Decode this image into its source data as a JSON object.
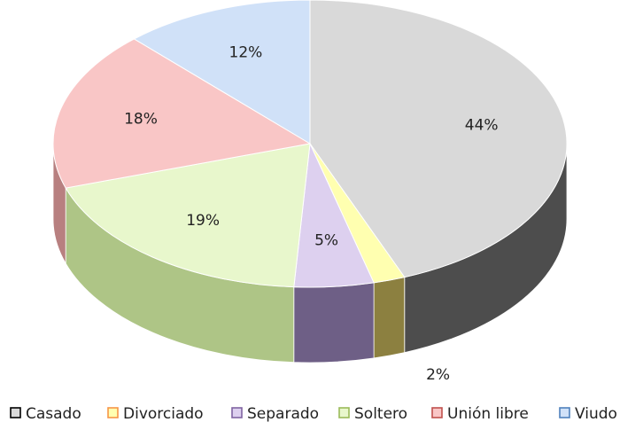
{
  "chart_data": {
    "type": "pie3d",
    "categories": [
      "Casado",
      "Divorciado",
      "Separado",
      "Soltero",
      "Unión libre",
      "Viudo"
    ],
    "values": [
      44,
      2,
      5,
      19,
      18,
      12
    ],
    "value_labels": [
      "44%",
      "2%",
      "5%",
      "19%",
      "18%",
      "12%"
    ],
    "colors": [
      "#d9d9d9",
      "#ffffb0",
      "#ddd0ef",
      "#e8f7cc",
      "#f9c6c6",
      "#d0e1f8"
    ],
    "side_colors": [
      "#4d4d4d",
      "#8c8040",
      "#6e5f86",
      "#aec586",
      "#b88080",
      "#7f95b8"
    ],
    "legend_colors": [
      "#000000",
      "#f79646",
      "#8064a2",
      "#9bbb59",
      "#c0504d",
      "#4f81bd"
    ],
    "legend": "bottom"
  }
}
